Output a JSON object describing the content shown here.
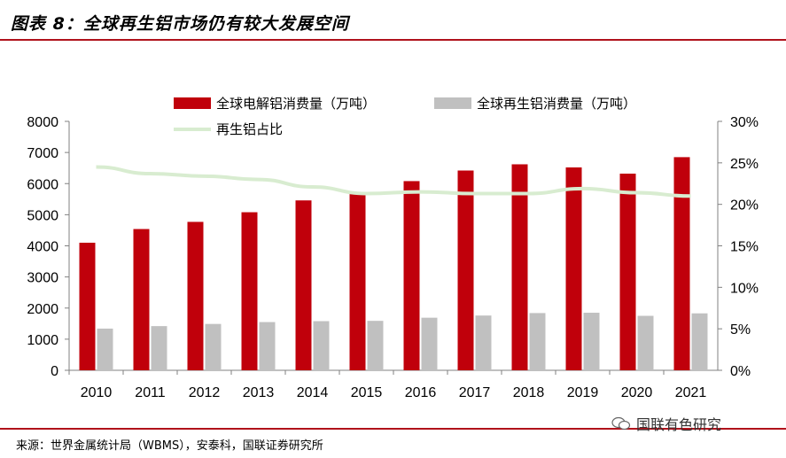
{
  "header": {
    "title": "图表 8：全球再生铝市场仍有较大发展空间"
  },
  "footer": {
    "source": "来源：世界金属统计局（WBMS），安泰科，国联证券研究所"
  },
  "watermark": {
    "text": "国联有色研究",
    "icon": "wechat-icon"
  },
  "colors": {
    "accent": "#b0121b",
    "bar_primary": "#c0000b",
    "bar_secondary": "#c0c0c0",
    "line": "#d8ecd0"
  },
  "chart_data": {
    "type": "bar",
    "categories": [
      "2010",
      "2011",
      "2012",
      "2013",
      "2014",
      "2015",
      "2016",
      "2017",
      "2018",
      "2019",
      "2020",
      "2021"
    ],
    "series": [
      {
        "name": "全球电解铝消费量（万吨）",
        "type": "bar",
        "axis": "left",
        "values": [
          4100,
          4540,
          4770,
          5080,
          5460,
          5730,
          6080,
          6420,
          6620,
          6520,
          6320,
          6850
        ]
      },
      {
        "name": "全球再生铝消费量（万吨）",
        "type": "bar",
        "axis": "left",
        "values": [
          1340,
          1420,
          1490,
          1550,
          1580,
          1590,
          1690,
          1760,
          1840,
          1850,
          1750,
          1830
        ]
      },
      {
        "name": "再生铝占比",
        "type": "line",
        "axis": "right",
        "values": [
          24.5,
          23.7,
          23.4,
          23.0,
          22.1,
          21.3,
          21.5,
          21.3,
          21.3,
          21.9,
          21.4,
          21.0
        ]
      }
    ],
    "y_left": {
      "min": 0,
      "max": 8000,
      "ticks": [
        "0",
        "1000",
        "2000",
        "3000",
        "4000",
        "5000",
        "6000",
        "7000",
        "8000"
      ]
    },
    "y_right": {
      "min": 0,
      "max": 30,
      "ticks": [
        "0%",
        "5%",
        "10%",
        "15%",
        "20%",
        "25%",
        "30%"
      ]
    },
    "grid": false,
    "legend_position": "top"
  }
}
